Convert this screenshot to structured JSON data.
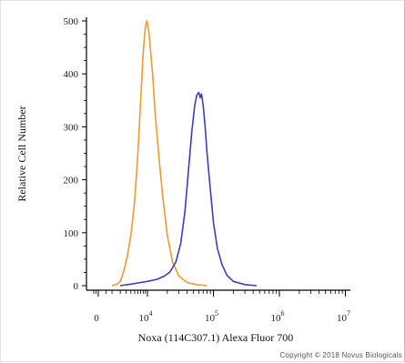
{
  "chart_data": {
    "type": "line",
    "title": "",
    "xlabel": "Noxa (114C307.1) Alexa Fluor 700",
    "ylabel": "Relative Cell Number",
    "x_scale": "biexponential",
    "xlim": [
      -1000,
      10000000
    ],
    "ylim": [
      0,
      520
    ],
    "x_ticks": [
      {
        "value": 0,
        "base": "0",
        "exp": ""
      },
      {
        "value": 10000,
        "base": "10",
        "exp": "4"
      },
      {
        "value": 100000,
        "base": "10",
        "exp": "5"
      },
      {
        "value": 1000000,
        "base": "10",
        "exp": "6"
      },
      {
        "value": 10000000,
        "base": "10",
        "exp": "7"
      }
    ],
    "y_ticks": [
      0,
      100,
      200,
      300,
      400,
      500
    ],
    "grid": false,
    "legend": "none",
    "series": [
      {
        "color": "#f0992f",
        "points": [
          [
            1000,
            0
          ],
          [
            1600,
            3
          ],
          [
            2000,
            8
          ],
          [
            2500,
            25
          ],
          [
            3200,
            55
          ],
          [
            4000,
            95
          ],
          [
            5000,
            160
          ],
          [
            6000,
            250
          ],
          [
            7000,
            350
          ],
          [
            8000,
            440
          ],
          [
            9000,
            490
          ],
          [
            9700,
            500
          ],
          [
            10500,
            480
          ],
          [
            12000,
            400
          ],
          [
            13000,
            330
          ],
          [
            15000,
            240
          ],
          [
            17000,
            170
          ],
          [
            20000,
            95
          ],
          [
            24000,
            45
          ],
          [
            30000,
            18
          ],
          [
            40000,
            6
          ],
          [
            55000,
            2
          ],
          [
            80000,
            0
          ]
        ]
      },
      {
        "color": "#3a3ec4",
        "points": [
          [
            2000,
            0
          ],
          [
            4000,
            3
          ],
          [
            7000,
            6
          ],
          [
            10000,
            8
          ],
          [
            14000,
            12
          ],
          [
            18000,
            18
          ],
          [
            22000,
            26
          ],
          [
            27000,
            45
          ],
          [
            32000,
            80
          ],
          [
            37000,
            140
          ],
          [
            42000,
            220
          ],
          [
            47000,
            290
          ],
          [
            52000,
            340
          ],
          [
            56000,
            360
          ],
          [
            60000,
            365
          ],
          [
            63000,
            355
          ],
          [
            66000,
            362
          ],
          [
            70000,
            340
          ],
          [
            75000,
            300
          ],
          [
            80000,
            250
          ],
          [
            90000,
            180
          ],
          [
            100000,
            120
          ],
          [
            115000,
            70
          ],
          [
            135000,
            40
          ],
          [
            160000,
            20
          ],
          [
            200000,
            8
          ],
          [
            300000,
            2
          ],
          [
            450000,
            0
          ]
        ]
      }
    ]
  },
  "copyright": "Copyright © 2018 Novus Biologicals"
}
